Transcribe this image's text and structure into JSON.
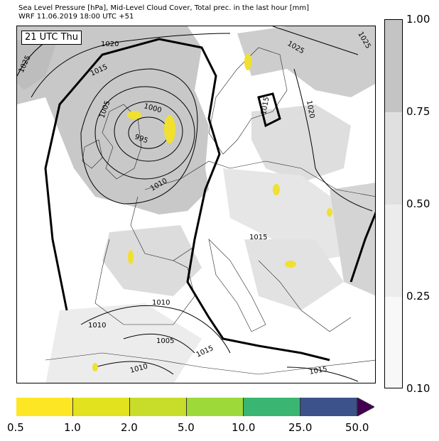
{
  "header": {
    "line1": "Sea Level Pressure [hPa], Mid-Level Cloud Cover, Total prec. in the last hour [mm]",
    "line2": "WRF 11.06.2019 18:00 UTC +51"
  },
  "map": {
    "time_label": "21 UTC Thu",
    "isobar_labels": [
      "1020",
      "1025",
      "1015",
      "1005",
      "1000",
      "995",
      "1010",
      "1025",
      "1015",
      "1020",
      "1015",
      "1010",
      "1010",
      "1005",
      "1015",
      "1010",
      "1015",
      "1025"
    ],
    "colors": {
      "cloud_dark": "#c4c4c4",
      "cloud_mid": "#dcdcdc",
      "cloud_light": "#efefef",
      "precip": "#f0e030"
    }
  },
  "cloud_colorbar": {
    "labels": [
      "1.00",
      "0.75",
      "0.50",
      "0.25",
      "0.10"
    ],
    "colors": [
      "#c4c4c4",
      "#e0e0e0",
      "#ececec",
      "#f8f8f8"
    ]
  },
  "precip_colorbar": {
    "labels": [
      "0.5",
      "1.0",
      "2.0",
      "5.0",
      "10.0",
      "25.0",
      "50.0"
    ],
    "colors": [
      "#fde725",
      "#e3e21e",
      "#c8dd2a",
      "#9ed93a",
      "#3ab572",
      "#3b528b",
      "#440154"
    ]
  }
}
